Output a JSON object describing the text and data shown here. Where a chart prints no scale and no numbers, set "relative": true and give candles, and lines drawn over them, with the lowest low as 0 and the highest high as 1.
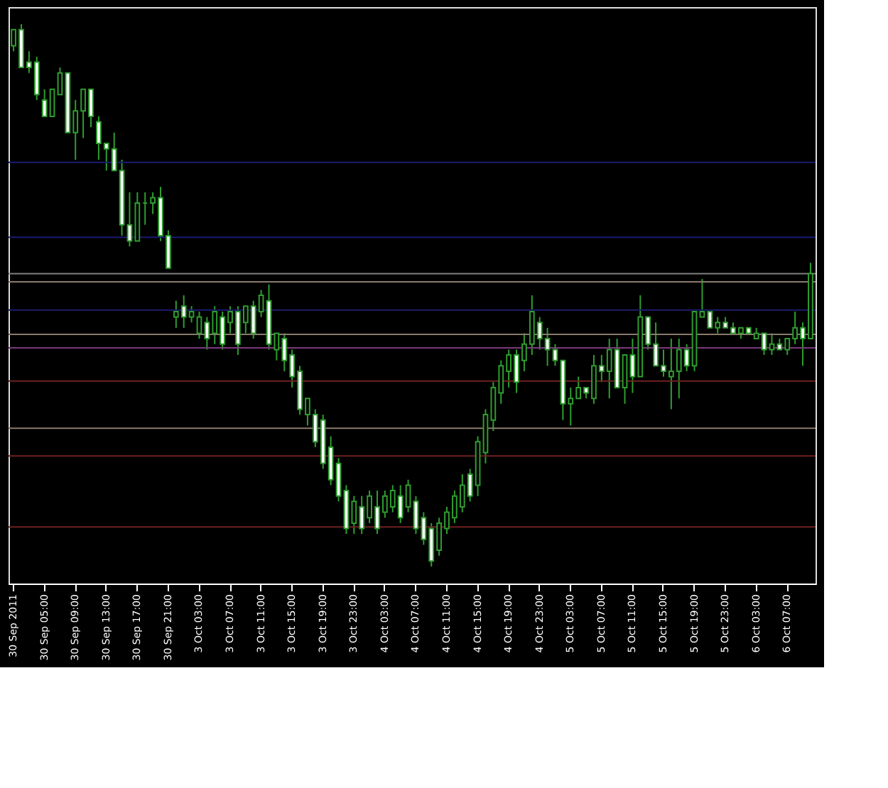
{
  "chart_data": {
    "type": "candlestick",
    "relative": true,
    "color": "#2e9e2e",
    "categories": [
      "30 Sep 2011",
      null,
      null,
      null,
      "30 Sep 05:00",
      null,
      null,
      null,
      "30 Sep 09:00",
      null,
      null,
      null,
      "30 Sep 13:00",
      null,
      null,
      null,
      "30 Sep 17:00",
      null,
      null,
      null,
      "30 Sep 21:00",
      null,
      null,
      null,
      "3 Oct 03:00",
      null,
      null,
      null,
      "3 Oct 07:00",
      null,
      null,
      null,
      "3 Oct 11:00",
      null,
      null,
      null,
      "3 Oct 15:00",
      null,
      null,
      null,
      "3 Oct 19:00",
      null,
      null,
      null,
      "3 Oct 23:00",
      null,
      null,
      null,
      "4 Oct 03:00",
      null,
      null,
      null,
      "4 Oct 07:00",
      null,
      null,
      null,
      "4 Oct 11:00",
      null,
      null,
      null,
      "4 Oct 15:00",
      null,
      null,
      null,
      "4 Oct 19:00",
      null,
      null,
      null,
      "4 Oct 23:00",
      null,
      null,
      null,
      "5 Oct 03:00",
      null,
      null,
      null,
      "5 Oct 07:00",
      null,
      null,
      null,
      "5 Oct 11:00",
      null,
      null,
      null,
      "5 Oct 15:00",
      null,
      null,
      null,
      "5 Oct 19:00",
      null,
      null,
      null,
      "5 Oct 23:00",
      null,
      null,
      null,
      "6 Oct 03:00",
      null,
      null,
      null,
      "6 Oct 07:00",
      null,
      null,
      null
    ],
    "ohlc": [
      [
        0.96,
        0.99,
        0.95,
        0.99
      ],
      [
        0.99,
        1.0,
        0.92,
        0.92
      ],
      [
        0.93,
        0.95,
        0.91,
        0.92
      ],
      [
        0.93,
        0.94,
        0.86,
        0.87
      ],
      [
        0.86,
        0.88,
        0.83,
        0.83
      ],
      [
        0.83,
        0.88,
        0.83,
        0.88
      ],
      [
        0.87,
        0.92,
        0.87,
        0.91
      ],
      [
        0.91,
        0.91,
        0.8,
        0.8
      ],
      [
        0.8,
        0.86,
        0.75,
        0.84
      ],
      [
        0.84,
        0.88,
        0.79,
        0.88
      ],
      [
        0.88,
        0.88,
        0.81,
        0.83
      ],
      [
        0.82,
        0.83,
        0.75,
        0.78
      ],
      [
        0.78,
        0.78,
        0.73,
        0.77
      ],
      [
        0.77,
        0.8,
        0.73,
        0.73
      ],
      [
        0.73,
        0.75,
        0.61,
        0.63
      ],
      [
        0.63,
        0.69,
        0.59,
        0.6
      ],
      [
        0.6,
        0.69,
        0.6,
        0.67
      ],
      [
        0.67,
        0.69,
        0.63,
        0.67
      ],
      [
        0.67,
        0.69,
        0.65,
        0.68
      ],
      [
        0.68,
        0.7,
        0.6,
        0.61
      ],
      [
        0.61,
        0.62,
        0.55,
        0.55
      ],
      [
        0.46,
        0.49,
        0.44,
        0.47
      ],
      [
        0.48,
        0.5,
        0.44,
        0.46
      ],
      [
        0.46,
        0.48,
        0.45,
        0.47
      ],
      [
        0.43,
        0.47,
        0.42,
        0.46
      ],
      [
        0.45,
        0.46,
        0.4,
        0.42
      ],
      [
        0.43,
        0.48,
        0.41,
        0.47
      ],
      [
        0.46,
        0.47,
        0.4,
        0.41
      ],
      [
        0.45,
        0.48,
        0.43,
        0.47
      ],
      [
        0.47,
        0.48,
        0.39,
        0.41
      ],
      [
        0.45,
        0.48,
        0.43,
        0.48
      ],
      [
        0.48,
        0.49,
        0.42,
        0.43
      ],
      [
        0.47,
        0.51,
        0.46,
        0.5
      ],
      [
        0.49,
        0.52,
        0.4,
        0.41
      ],
      [
        0.4,
        0.43,
        0.38,
        0.43
      ],
      [
        0.42,
        0.43,
        0.36,
        0.38
      ],
      [
        0.39,
        0.4,
        0.33,
        0.35
      ],
      [
        0.36,
        0.37,
        0.28,
        0.29
      ],
      [
        0.28,
        0.31,
        0.26,
        0.31
      ],
      [
        0.28,
        0.29,
        0.22,
        0.23
      ],
      [
        0.27,
        0.28,
        0.18,
        0.19
      ],
      [
        0.22,
        0.24,
        0.15,
        0.16
      ],
      [
        0.19,
        0.2,
        0.12,
        0.13
      ],
      [
        0.14,
        0.15,
        0.06,
        0.07
      ],
      [
        0.08,
        0.13,
        0.06,
        0.12
      ],
      [
        0.11,
        0.13,
        0.06,
        0.07
      ],
      [
        0.09,
        0.14,
        0.08,
        0.13
      ],
      [
        0.11,
        0.14,
        0.06,
        0.07
      ],
      [
        0.1,
        0.14,
        0.09,
        0.13
      ],
      [
        0.11,
        0.15,
        0.1,
        0.14
      ],
      [
        0.13,
        0.15,
        0.08,
        0.09
      ],
      [
        0.11,
        0.16,
        0.1,
        0.15
      ],
      [
        0.12,
        0.13,
        0.06,
        0.07
      ],
      [
        0.09,
        0.1,
        0.04,
        0.05
      ],
      [
        0.07,
        0.08,
        0.0,
        0.01
      ],
      [
        0.03,
        0.09,
        0.02,
        0.08
      ],
      [
        0.07,
        0.11,
        0.06,
        0.1
      ],
      [
        0.09,
        0.14,
        0.08,
        0.13
      ],
      [
        0.11,
        0.17,
        0.1,
        0.15
      ],
      [
        0.17,
        0.18,
        0.12,
        0.13
      ],
      [
        0.15,
        0.24,
        0.13,
        0.23
      ],
      [
        0.21,
        0.29,
        0.19,
        0.28
      ],
      [
        0.27,
        0.34,
        0.25,
        0.33
      ],
      [
        0.32,
        0.38,
        0.3,
        0.37
      ],
      [
        0.36,
        0.4,
        0.33,
        0.39
      ],
      [
        0.39,
        0.4,
        0.32,
        0.34
      ],
      [
        0.38,
        0.43,
        0.36,
        0.41
      ],
      [
        0.41,
        0.5,
        0.39,
        0.47
      ],
      [
        0.45,
        0.46,
        0.4,
        0.42
      ],
      [
        0.42,
        0.44,
        0.37,
        0.4
      ],
      [
        0.4,
        0.41,
        0.37,
        0.38
      ],
      [
        0.38,
        0.38,
        0.27,
        0.3
      ],
      [
        0.3,
        0.33,
        0.26,
        0.31
      ],
      [
        0.31,
        0.35,
        0.31,
        0.33
      ],
      [
        0.33,
        0.33,
        0.31,
        0.32
      ],
      [
        0.31,
        0.39,
        0.3,
        0.37
      ],
      [
        0.37,
        0.39,
        0.34,
        0.36
      ],
      [
        0.36,
        0.42,
        0.31,
        0.4
      ],
      [
        0.4,
        0.42,
        0.33,
        0.33
      ],
      [
        0.33,
        0.39,
        0.3,
        0.39
      ],
      [
        0.39,
        0.42,
        0.32,
        0.35
      ],
      [
        0.35,
        0.5,
        0.35,
        0.46
      ],
      [
        0.46,
        0.46,
        0.4,
        0.41
      ],
      [
        0.41,
        0.45,
        0.37,
        0.37
      ],
      [
        0.37,
        0.4,
        0.35,
        0.36
      ],
      [
        0.35,
        0.42,
        0.29,
        0.36
      ],
      [
        0.36,
        0.42,
        0.31,
        0.4
      ],
      [
        0.4,
        0.41,
        0.36,
        0.37
      ],
      [
        0.37,
        0.47,
        0.36,
        0.47
      ],
      [
        0.46,
        0.53,
        0.46,
        0.47
      ],
      [
        0.47,
        0.47,
        0.44,
        0.44
      ],
      [
        0.44,
        0.46,
        0.43,
        0.45
      ],
      [
        0.45,
        0.46,
        0.44,
        0.44
      ],
      [
        0.44,
        0.45,
        0.43,
        0.43
      ],
      [
        0.43,
        0.44,
        0.42,
        0.44
      ],
      [
        0.44,
        0.44,
        0.43,
        0.43
      ],
      [
        0.42,
        0.44,
        0.42,
        0.43
      ],
      [
        0.43,
        0.43,
        0.39,
        0.4
      ],
      [
        0.4,
        0.43,
        0.39,
        0.41
      ],
      [
        0.41,
        0.42,
        0.4,
        0.4
      ],
      [
        0.4,
        0.42,
        0.39,
        0.42
      ],
      [
        0.42,
        0.47,
        0.41,
        0.44
      ],
      [
        0.44,
        0.45,
        0.37,
        0.42
      ],
      [
        0.42,
        0.56,
        0.42,
        0.54
      ]
    ],
    "ref_lines": [
      {
        "axis": "y",
        "value": 0.54,
        "color": "#808080"
      },
      {
        "axis": "y",
        "value": 0.745,
        "color": "#1c1c70"
      },
      {
        "axis": "y",
        "value": 0.607,
        "color": "#1c1c70"
      },
      {
        "axis": "y",
        "value": 0.473,
        "color": "#1c1c70"
      },
      {
        "axis": "y",
        "value": 0.525,
        "color": "#8a7a6a"
      },
      {
        "axis": "y",
        "value": 0.428,
        "color": "#8a7a6a"
      },
      {
        "axis": "y",
        "value": 0.403,
        "color": "#7a3a7a"
      },
      {
        "axis": "y",
        "value": 0.342,
        "color": "#702020"
      },
      {
        "axis": "y",
        "value": 0.255,
        "color": "#8a7a6a"
      },
      {
        "axis": "y",
        "value": 0.204,
        "color": "#702020"
      },
      {
        "axis": "y",
        "value": 0.073,
        "color": "#702020"
      }
    ]
  }
}
